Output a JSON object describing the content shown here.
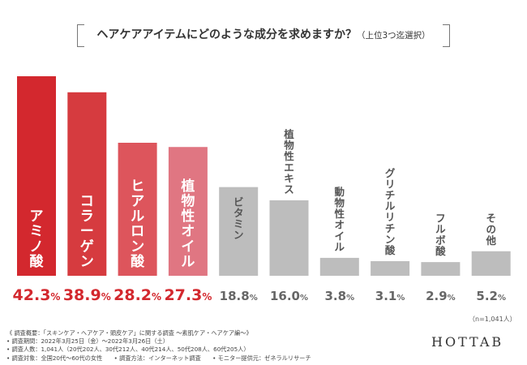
{
  "title": {
    "main": "ヘアケアアイテムにどのような成分を求めますか？",
    "sub": "（上位3つ迄選択）"
  },
  "chart_data": {
    "type": "bar",
    "title": "ヘアケアアイテムにどのような成分を求めますか？（上位3つ迄選択）",
    "categories": [
      "アミノ酸",
      "コラーゲン",
      "ヒアルロン酸",
      "植物性オイル",
      "ビタミン",
      "植物性エキス",
      "動物性オイル",
      "グリチルリチン酸",
      "フルボ酸",
      "その他"
    ],
    "values": [
      42.3,
      38.9,
      28.2,
      27.3,
      18.8,
      16.0,
      3.8,
      3.1,
      2.9,
      5.2
    ],
    "value_labels": [
      "42.3%",
      "38.9%",
      "28.2%",
      "27.3%",
      "18.8%",
      "16.0%",
      "3.8%",
      "3.1%",
      "2.9%",
      "5.2%"
    ],
    "ylim": [
      0,
      42.3
    ],
    "colors": [
      "#d3282e",
      "#d63b3f",
      "#dd555c",
      "#e07682",
      "#bdbdbd",
      "#bdbdbd",
      "#bdbdbd",
      "#bdbdbd",
      "#bdbdbd",
      "#bdbdbd"
    ],
    "value_colors": [
      "#d3282e",
      "#d3282e",
      "#d3282e",
      "#d3282e",
      "#666666",
      "#666666",
      "#666666",
      "#666666",
      "#666666",
      "#666666"
    ],
    "xlabel": "",
    "ylabel": "",
    "grid": false,
    "legend": "none"
  },
  "n_note": "（n=1,041人）",
  "footer": [
    "《 調査概要：「スキンケア・ヘアケア・頭皮ケア」に関する調査 ～素肌ケア・ヘアケア編～》",
    "• 調査期間：2022年3月25日（金）～2022年3月26日（土）",
    "• 調査人数：1,041人（20代202人、30代212人、40代214人、50代208人、60代205人）",
    "• 調査対象：全国20代～60代の女性　　• 調査方法：インターネット調査　　• モニター提供元：ゼネラルリサーチ"
  ],
  "brand": "HOTTAB"
}
